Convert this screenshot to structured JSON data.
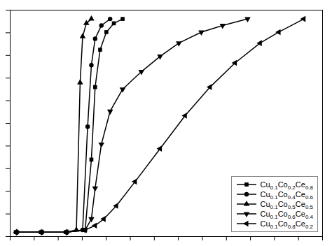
{
  "chart_data": {
    "type": "line",
    "color": "#000000",
    "series": [
      {
        "name": "Cu0.1Co0.2Ce0.8",
        "marker": "square",
        "x": [
          100,
          120,
          140,
          155,
          160,
          163,
          167,
          172,
          178,
          185
        ],
        "values": [
          2,
          2,
          2,
          3,
          35,
          68,
          85,
          93,
          97,
          99
        ]
      },
      {
        "name": "Cu0.1Co0.4Ce0.6",
        "marker": "circle",
        "x": [
          100,
          120,
          140,
          153,
          157,
          160,
          163,
          168,
          175
        ],
        "values": [
          2,
          2,
          2,
          3,
          50,
          78,
          90,
          96,
          99
        ]
      },
      {
        "name": "Cu0.1Co0.5Ce0.5",
        "marker": "triangle-up",
        "x": [
          100,
          120,
          140,
          148,
          151,
          153,
          156,
          160
        ],
        "values": [
          2,
          2,
          2,
          3,
          70,
          91,
          97,
          99
        ]
      },
      {
        "name": "Cu0.1Co0.6Ce0.4",
        "marker": "triangle-down",
        "x": [
          100,
          120,
          140,
          155,
          160,
          163,
          168,
          175,
          185,
          200,
          215,
          230,
          248,
          265,
          285
        ],
        "values": [
          2,
          2,
          2,
          3,
          8,
          22,
          42,
          57,
          67,
          75,
          82,
          88,
          93,
          96,
          99
        ]
      },
      {
        "name": "Cu0.1Co0.8Ce0.2",
        "marker": "triangle-left",
        "x": [
          100,
          120,
          140,
          155,
          163,
          170,
          180,
          195,
          215,
          235,
          255,
          275,
          295,
          310,
          330
        ],
        "values": [
          2,
          2,
          2,
          3,
          5,
          8,
          14,
          25,
          40,
          55,
          68,
          79,
          88,
          93,
          99
        ]
      }
    ],
    "xlim": [
      95,
      345
    ],
    "ylim": [
      0,
      103
    ],
    "xticks": [
      95,
      114.23076923076923,
      133.46153846153845,
      152.6923076923077,
      171.92307692307693,
      191.15384615384616,
      210.3846153846154,
      229.6153846153846,
      248.84615384615384,
      268.0769230769231,
      287.3076923076923,
      306.53846153846155,
      325.7692307692308,
      345
    ],
    "yticks": [
      0,
      10.3,
      20.6,
      30.9,
      41.2,
      51.5,
      61.8,
      72.1,
      82.4,
      92.7,
      103
    ],
    "tick_labels": false,
    "grid": false,
    "legend": "lower right"
  }
}
